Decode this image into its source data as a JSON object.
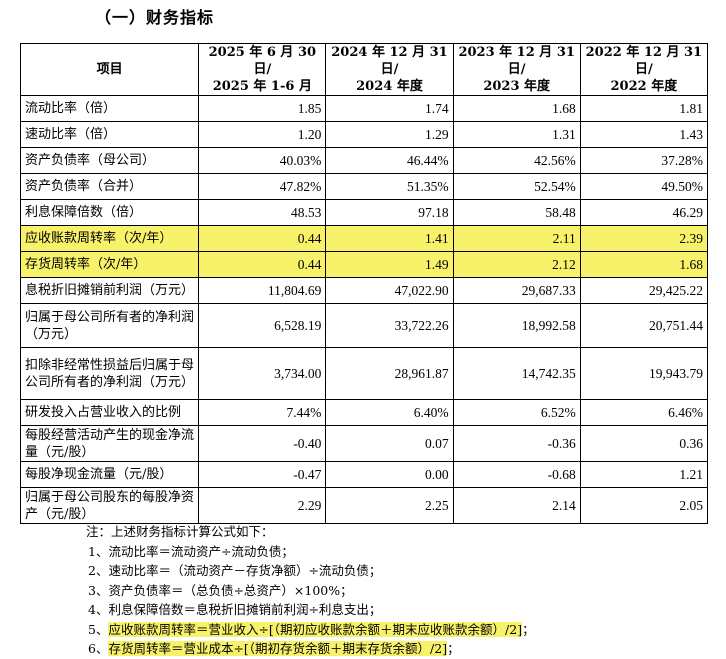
{
  "section_title": "（一）财务指标",
  "header": {
    "item": "项目",
    "periods": [
      {
        "line1": "2025 年 6 月 30 日/",
        "line2": "2025 年 1-6 月"
      },
      {
        "line1": "2024 年 12 月 31 日/",
        "line2": "2024 年度"
      },
      {
        "line1": "2023 年 12 月 31 日/",
        "line2": "2023 年度"
      },
      {
        "line1": "2022 年 12 月 31 日/",
        "line2": "2022 年度"
      }
    ]
  },
  "rows": [
    {
      "label": "流动比率（倍）",
      "values": [
        "1.85",
        "1.74",
        "1.68",
        "1.81"
      ]
    },
    {
      "label": "速动比率（倍）",
      "values": [
        "1.20",
        "1.29",
        "1.31",
        "1.43"
      ]
    },
    {
      "label": "资产负债率（母公司）",
      "values": [
        "40.03%",
        "46.44%",
        "42.56%",
        "37.28%"
      ]
    },
    {
      "label": "资产负债率（合并）",
      "values": [
        "47.82%",
        "51.35%",
        "52.54%",
        "49.50%"
      ]
    },
    {
      "label": "利息保障倍数（倍）",
      "values": [
        "48.53",
        "97.18",
        "58.48",
        "46.29"
      ]
    },
    {
      "label": "应收账款周转率（次/年）",
      "values": [
        "0.44",
        "1.41",
        "2.11",
        "2.39"
      ]
    },
    {
      "label": "存货周转率（次/年）",
      "values": [
        "0.44",
        "1.49",
        "2.12",
        "1.68"
      ]
    },
    {
      "label": "息税折旧摊销前利润（万元）",
      "values": [
        "11,804.69",
        "47,022.90",
        "29,687.33",
        "29,425.22"
      ]
    },
    {
      "label": "归属于母公司所有者的净利润（万元）",
      "values": [
        "6,528.19",
        "33,722.26",
        "18,992.58",
        "20,751.44"
      ]
    },
    {
      "label": "扣除非经常性损益后归属于母公司所有者的净利润（万元）",
      "values": [
        "3,734.00",
        "28,961.87",
        "14,742.35",
        "19,943.79"
      ]
    },
    {
      "label": "研发投入占营业收入的比例",
      "values": [
        "7.44%",
        "6.40%",
        "6.52%",
        "6.46%"
      ]
    },
    {
      "label": "每股经营活动产生的现金净流量（元/股）",
      "values": [
        "-0.40",
        "0.07",
        "-0.36",
        "0.36"
      ]
    },
    {
      "label": "每股净现金流量（元/股）",
      "values": [
        "-0.47",
        "0.00",
        "-0.68",
        "1.21"
      ]
    },
    {
      "label": "归属于母公司股东的每股净资产（元/股）",
      "values": [
        "2.29",
        "2.25",
        "2.14",
        "2.05"
      ]
    }
  ],
  "notes": {
    "intro": "注：上述财务指标计算公式如下：",
    "lines": [
      "1、流动比率＝流动资产÷流动负债；",
      "2、速动比率＝（流动资产－存货净额）÷流动负债；",
      "3、资产负债率＝（总负债÷总资产）×100%；",
      "4、利息保障倍数＝息税折旧摊销前利润÷利息支出；"
    ],
    "line5_num": "5、",
    "line5_text": "应收账款周转率＝营业收入÷[（期初应收账款余额＋期末应收账款余额）/2]",
    "line5_end": "；",
    "line6_num": "6、",
    "line6_text": "存货周转率＝营业成本÷[（期初存货余额＋期末存货余额）/2]",
    "line6_end": "；"
  },
  "highlight_color": "#f7f26a"
}
